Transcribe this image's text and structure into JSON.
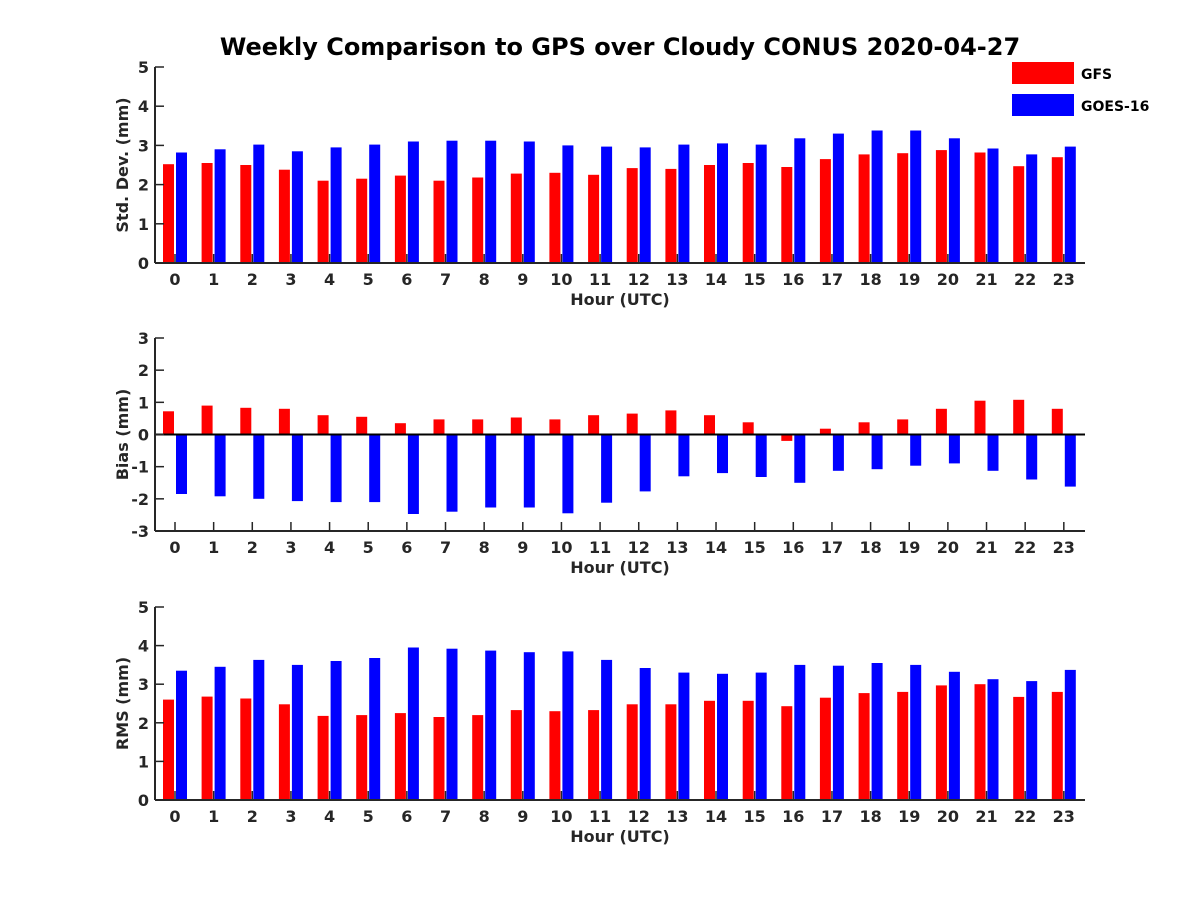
{
  "figure": {
    "title": "Weekly Comparison to GPS over Cloudy CONUS 2020-04-27"
  },
  "legend": {
    "position": "top-right",
    "items": [
      {
        "label": "GFS",
        "color": "#ff0000"
      },
      {
        "label": "GOES-16",
        "color": "#0000ff"
      }
    ]
  },
  "chart_data": [
    {
      "type": "bar",
      "xlabel": "Hour (UTC)",
      "ylabel": "Std. Dev. (mm)",
      "ylim": [
        0,
        5
      ],
      "yticks": [
        0,
        1,
        2,
        3,
        4,
        5
      ],
      "categories": [
        "0",
        "1",
        "2",
        "3",
        "4",
        "5",
        "6",
        "7",
        "8",
        "9",
        "10",
        "11",
        "12",
        "13",
        "14",
        "15",
        "16",
        "17",
        "18",
        "19",
        "20",
        "21",
        "22",
        "23"
      ],
      "series": [
        {
          "name": "GFS",
          "color": "#ff0000",
          "values": [
            2.52,
            2.55,
            2.5,
            2.38,
            2.1,
            2.15,
            2.23,
            2.1,
            2.18,
            2.28,
            2.3,
            2.25,
            2.42,
            2.4,
            2.5,
            2.55,
            2.45,
            2.65,
            2.77,
            2.8,
            2.88,
            2.82,
            2.47,
            2.7
          ]
        },
        {
          "name": "GOES-16",
          "color": "#0000ff",
          "values": [
            2.82,
            2.9,
            3.02,
            2.85,
            2.95,
            3.02,
            3.1,
            3.12,
            3.12,
            3.1,
            3.0,
            2.97,
            2.95,
            3.02,
            3.05,
            3.02,
            3.18,
            3.3,
            3.38,
            3.38,
            3.18,
            2.92,
            2.77,
            2.97
          ]
        }
      ]
    },
    {
      "type": "bar",
      "xlabel": "Hour (UTC)",
      "ylabel": "Bias (mm)",
      "ylim": [
        -3,
        3
      ],
      "yticks": [
        -3,
        -2,
        -1,
        0,
        1,
        2,
        3
      ],
      "categories": [
        "0",
        "1",
        "2",
        "3",
        "4",
        "5",
        "6",
        "7",
        "8",
        "9",
        "10",
        "11",
        "12",
        "13",
        "14",
        "15",
        "16",
        "17",
        "18",
        "19",
        "20",
        "21",
        "22",
        "23"
      ],
      "series": [
        {
          "name": "GFS",
          "color": "#ff0000",
          "values": [
            0.72,
            0.9,
            0.83,
            0.8,
            0.6,
            0.55,
            0.35,
            0.47,
            0.47,
            0.53,
            0.47,
            0.6,
            0.65,
            0.75,
            0.6,
            0.38,
            -0.2,
            0.18,
            0.38,
            0.47,
            0.8,
            1.05,
            1.08,
            0.8
          ]
        },
        {
          "name": "GOES-16",
          "color": "#0000ff",
          "values": [
            -1.85,
            -1.92,
            -2.0,
            -2.07,
            -2.1,
            -2.1,
            -2.47,
            -2.4,
            -2.27,
            -2.27,
            -2.45,
            -2.12,
            -1.77,
            -1.3,
            -1.2,
            -1.32,
            -1.5,
            -1.13,
            -1.08,
            -0.97,
            -0.9,
            -1.13,
            -1.4,
            -1.62
          ]
        }
      ]
    },
    {
      "type": "bar",
      "xlabel": "Hour (UTC)",
      "ylabel": "RMS (mm)",
      "ylim": [
        0,
        5
      ],
      "yticks": [
        0,
        1,
        2,
        3,
        4,
        5
      ],
      "categories": [
        "0",
        "1",
        "2",
        "3",
        "4",
        "5",
        "6",
        "7",
        "8",
        "9",
        "10",
        "11",
        "12",
        "13",
        "14",
        "15",
        "16",
        "17",
        "18",
        "19",
        "20",
        "21",
        "22",
        "23"
      ],
      "series": [
        {
          "name": "GFS",
          "color": "#ff0000",
          "values": [
            2.6,
            2.68,
            2.63,
            2.48,
            2.18,
            2.2,
            2.25,
            2.15,
            2.2,
            2.33,
            2.3,
            2.33,
            2.48,
            2.48,
            2.57,
            2.57,
            2.43,
            2.65,
            2.77,
            2.8,
            2.97,
            3.0,
            2.67,
            2.8
          ]
        },
        {
          "name": "GOES-16",
          "color": "#0000ff",
          "values": [
            3.35,
            3.45,
            3.63,
            3.5,
            3.6,
            3.68,
            3.95,
            3.92,
            3.87,
            3.83,
            3.85,
            3.63,
            3.42,
            3.3,
            3.27,
            3.3,
            3.5,
            3.48,
            3.55,
            3.5,
            3.32,
            3.13,
            3.08,
            3.37
          ]
        }
      ]
    }
  ]
}
